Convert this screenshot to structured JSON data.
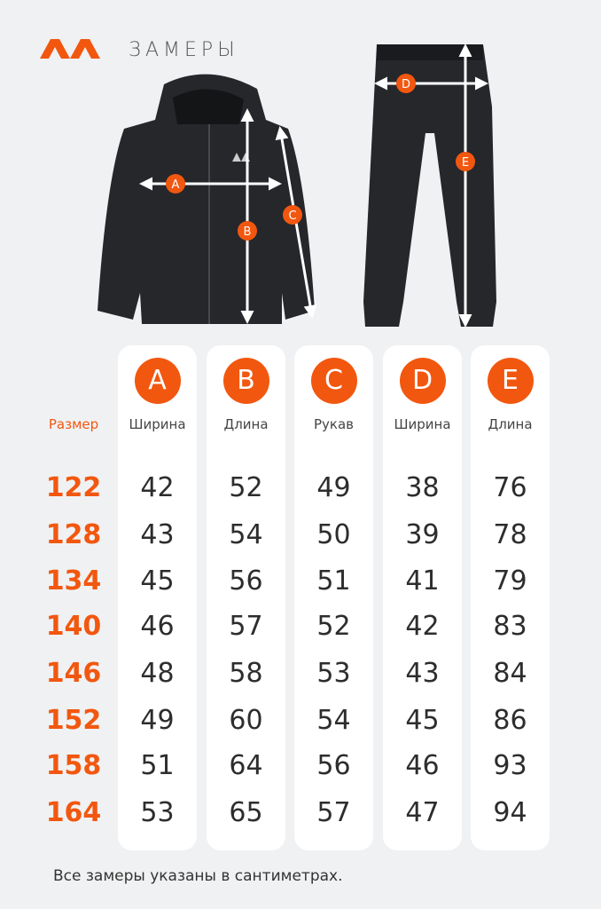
{
  "header": {
    "title": "ЗАМЕРЫ",
    "logo": "ΛΛ"
  },
  "accent": "#f2570f",
  "size_header": "Размер",
  "sizes": [
    "122",
    "128",
    "134",
    "140",
    "146",
    "152",
    "158",
    "164"
  ],
  "columns": [
    {
      "letter": "A",
      "label": "Ширина",
      "values": [
        "42",
        "43",
        "45",
        "46",
        "48",
        "49",
        "51",
        "53"
      ]
    },
    {
      "letter": "B",
      "label": "Длина",
      "values": [
        "52",
        "54",
        "56",
        "57",
        "58",
        "60",
        "64",
        "65"
      ]
    },
    {
      "letter": "C",
      "label": "Рукав",
      "values": [
        "49",
        "50",
        "51",
        "52",
        "53",
        "54",
        "56",
        "57"
      ]
    },
    {
      "letter": "D",
      "label": "Ширина",
      "values": [
        "38",
        "39",
        "41",
        "42",
        "43",
        "45",
        "46",
        "47"
      ]
    },
    {
      "letter": "E",
      "label": "Длина",
      "values": [
        "76",
        "78",
        "79",
        "83",
        "84",
        "86",
        "93",
        "94"
      ]
    }
  ],
  "footer": "Все замеры указаны в сантиметрах."
}
